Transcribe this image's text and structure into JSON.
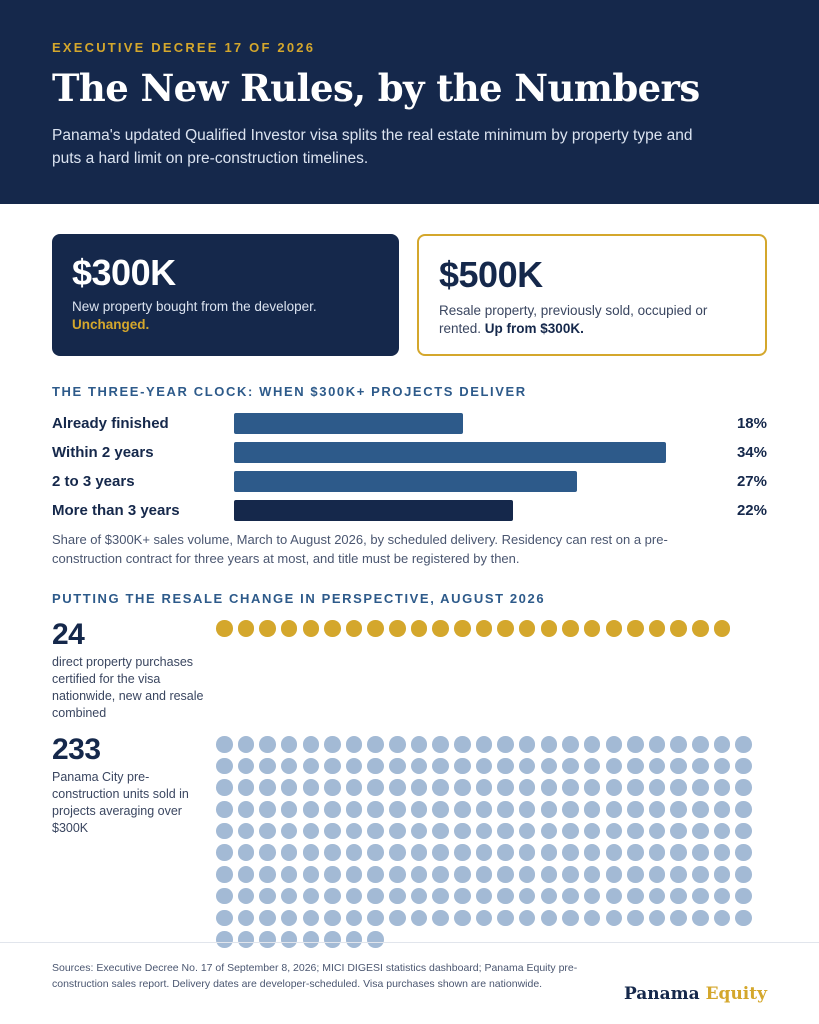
{
  "header": {
    "eyebrow": "EXECUTIVE DECREE 17 OF 2026",
    "title": "The New Rules, by the Numbers",
    "subtitle": "Panama's updated Qualified Investor visa splits the real estate minimum by property type and puts a hard limit on pre-construction timelines."
  },
  "cards": {
    "new": {
      "amount": "$300K",
      "desc": "New property bought from the developer.",
      "note": "Unchanged."
    },
    "resale": {
      "amount": "$500K",
      "desc": "Resale property, previously sold, occupied or rented.",
      "note": "Up from $300K."
    }
  },
  "delivery": {
    "section_title": "THE THREE-YEAR CLOCK: WHEN $300K+ PROJECTS DELIVER",
    "caption": "Share of $300K+ sales volume, March to August 2026, by scheduled delivery. Residency can rest on a pre-construction contract for three years at most, and title must be registered by then."
  },
  "perspective": {
    "section_title": "PUTTING THE RESALE CHANGE IN PERSPECTIVE, AUGUST 2026",
    "stat1": {
      "number": "24",
      "desc": "direct property purchases certified for the visa nationwide, new and resale combined"
    },
    "stat2": {
      "number": "233",
      "desc": "Panama City pre-construction units sold in projects averaging over $300K"
    }
  },
  "footer": {
    "sources": "Sources: Executive Decree No. 17 of September 8, 2026; MICI DIGESI statistics dashboard; Panama Equity pre-construction sales report. Delivery dates are developer-scheduled. Visa purchases shown are nationwide.",
    "brand_main": "Panama",
    "brand_accent": "Equity"
  },
  "colors": {
    "navy": "#15284b",
    "gold": "#d4a72c",
    "bar_blue": "#2d5a8a",
    "bar_navy": "#15284b",
    "dot_blue": "#a3bad5"
  },
  "chart_data": [
    {
      "type": "bar",
      "orientation": "horizontal",
      "title": "THE THREE-YEAR CLOCK: WHEN $300K+ PROJECTS DELIVER",
      "categories": [
        "Already finished",
        "Within 2 years",
        "2 to 3 years",
        "More than 3 years"
      ],
      "values": [
        18,
        34,
        27,
        22
      ],
      "value_labels": [
        "18%",
        "34%",
        "27%",
        "22%"
      ],
      "unit": "%",
      "xlim": [
        0,
        37
      ]
    },
    {
      "type": "pictogram",
      "series": [
        {
          "name": "direct property purchases certified for the visa nationwide, new and resale combined",
          "value": 24
        },
        {
          "name": "Panama City pre-construction units sold in projects averaging over $300K",
          "value": 233
        }
      ]
    }
  ]
}
